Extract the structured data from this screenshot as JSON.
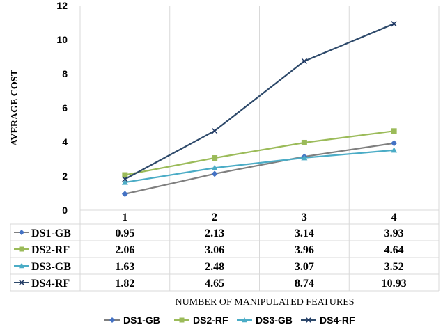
{
  "chart_data": {
    "type": "line",
    "xlabel": "NUMBER OF MANIPULATED FEATURES",
    "ylabel": "AVERAGE COST",
    "ylim": [
      0,
      12
    ],
    "yticks": [
      "0",
      "2",
      "4",
      "6",
      "8",
      "10",
      "12"
    ],
    "categories": [
      "1",
      "2",
      "3",
      "4"
    ],
    "grid": "vertical",
    "data_table": true,
    "legend_position": "bottom",
    "series": [
      {
        "name": "DS1-GB",
        "values": [
          0.95,
          2.13,
          3.14,
          3.93
        ],
        "labels": [
          "0.95",
          "2.13",
          "3.14",
          "3.93"
        ],
        "color": "#4472C4",
        "line_color": "#7F7F7F",
        "marker": "diamond"
      },
      {
        "name": "DS2-RF",
        "values": [
          2.06,
          3.06,
          3.96,
          4.64
        ],
        "labels": [
          "2.06",
          "3.06",
          "3.96",
          "4.64"
        ],
        "color": "#9BBB59",
        "line_color": "#9BBB59",
        "marker": "square"
      },
      {
        "name": "DS3-GB",
        "values": [
          1.63,
          2.48,
          3.07,
          3.52
        ],
        "labels": [
          "1.63",
          "2.48",
          "3.07",
          "3.52"
        ],
        "color": "#4BACC6",
        "line_color": "#4BACC6",
        "marker": "triangle"
      },
      {
        "name": "DS4-RF",
        "values": [
          1.82,
          4.65,
          8.74,
          10.93
        ],
        "labels": [
          "1.82",
          "4.65",
          "8.74",
          "10.93"
        ],
        "color": "#1F3864",
        "line_color": "#2E4A6B",
        "marker": "x"
      }
    ]
  }
}
